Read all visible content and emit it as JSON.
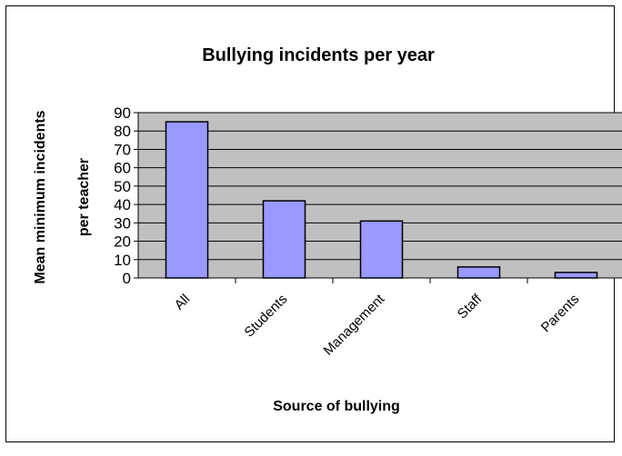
{
  "chart_data": {
    "type": "bar",
    "title": "Bullying incidents per year",
    "xlabel": "Source of bullying",
    "ylabel": [
      "Mean minimum incidents",
      "per teacher"
    ],
    "categories": [
      "All",
      "Students",
      "Management",
      "Staff",
      "Parents"
    ],
    "values": [
      85,
      42,
      31,
      6,
      3
    ],
    "ylim": [
      0,
      90
    ],
    "yticks": [
      "0",
      "10",
      "20",
      "30",
      "40",
      "50",
      "60",
      "70",
      "80",
      "90"
    ],
    "grid": true,
    "legend": "none",
    "colors": {
      "plot_background": "#c0c0c0",
      "bar_fill": "#9999ff",
      "bar_stroke": "#000000",
      "gridline": "#000000"
    }
  }
}
